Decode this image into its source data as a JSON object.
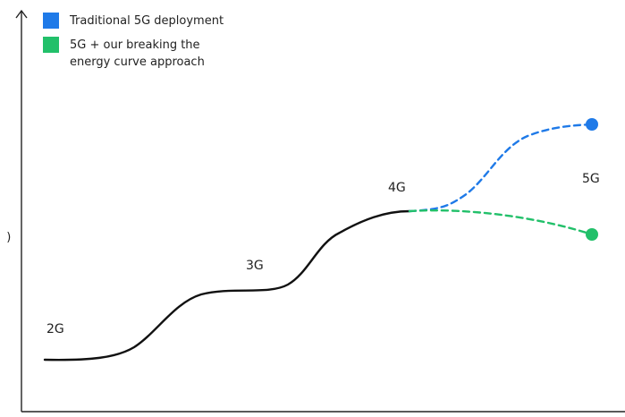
{
  "legend": {
    "items": [
      {
        "label": "Traditional 5G deployment",
        "color": "#1f7ae8"
      },
      {
        "label": "5G + our breaking the\nenergy curve approach",
        "color": "#22c06a"
      }
    ]
  },
  "stages": {
    "g2": "2G",
    "g3": "3G",
    "g4": "4G",
    "g5": "5G"
  },
  "y_axis_label": " )",
  "colors": {
    "history_line": "#111111",
    "axis": "#222222",
    "traditional": "#1f7ae8",
    "breaking_curve": "#22c06a"
  }
}
